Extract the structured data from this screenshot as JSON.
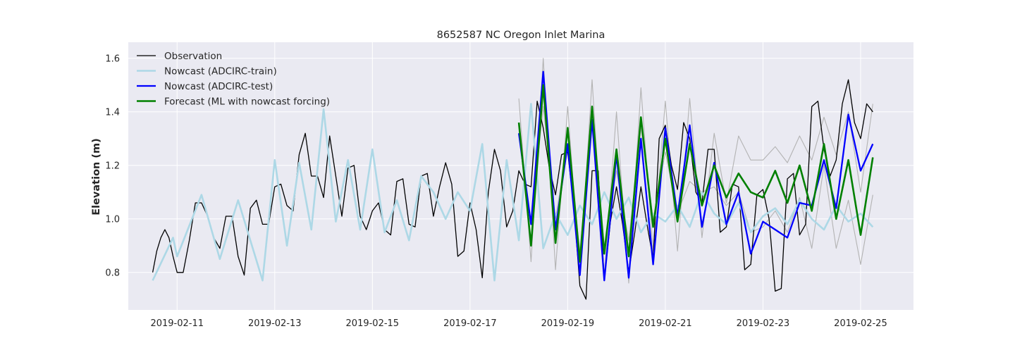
{
  "chart_data": {
    "type": "line",
    "title": "8652587 NC Oregon Inlet Marina",
    "xlabel": "",
    "ylabel": "Elevation (m)",
    "xlim": [
      "2019-02-10T00:00",
      "2019-02-26T02:00"
    ],
    "ylim": [
      0.66,
      1.66
    ],
    "xticks": [
      "2019-02-11",
      "2019-02-13",
      "2019-02-15",
      "2019-02-17",
      "2019-02-19",
      "2019-02-21",
      "2019-02-23",
      "2019-02-25"
    ],
    "yticks": [
      0.8,
      1.0,
      1.2,
      1.4,
      1.6
    ],
    "grid": true,
    "legend_position": "top-left",
    "background": "#eaeaf2",
    "series": [
      {
        "name": "Observation",
        "color": "#000000",
        "x": [
          "2019-02-10T12:00",
          "2019-02-10T14:00",
          "2019-02-10T16:00",
          "2019-02-10T18:00",
          "2019-02-10T20:00",
          "2019-02-10T22:00",
          "2019-02-11T00:00",
          "2019-02-11T03:00",
          "2019-02-11T06:00",
          "2019-02-11T09:00",
          "2019-02-11T12:00",
          "2019-02-11T15:00",
          "2019-02-11T18:00",
          "2019-02-11T21:00",
          "2019-02-12T00:00",
          "2019-02-12T03:00",
          "2019-02-12T06:00",
          "2019-02-12T09:00",
          "2019-02-12T12:00",
          "2019-02-12T15:00",
          "2019-02-12T18:00",
          "2019-02-12T21:00",
          "2019-02-13T00:00",
          "2019-02-13T03:00",
          "2019-02-13T06:00",
          "2019-02-13T09:00",
          "2019-02-13T12:00",
          "2019-02-13T15:00",
          "2019-02-13T18:00",
          "2019-02-13T21:00",
          "2019-02-14T00:00",
          "2019-02-14T03:00",
          "2019-02-14T06:00",
          "2019-02-14T09:00",
          "2019-02-14T12:00",
          "2019-02-14T15:00",
          "2019-02-14T18:00",
          "2019-02-14T21:00",
          "2019-02-15T00:00",
          "2019-02-15T03:00",
          "2019-02-15T06:00",
          "2019-02-15T09:00",
          "2019-02-15T12:00",
          "2019-02-15T15:00",
          "2019-02-15T18:00",
          "2019-02-15T21:00",
          "2019-02-16T00:00",
          "2019-02-16T03:00",
          "2019-02-16T06:00",
          "2019-02-16T09:00",
          "2019-02-16T12:00",
          "2019-02-16T15:00",
          "2019-02-16T18:00",
          "2019-02-16T21:00",
          "2019-02-17T00:00",
          "2019-02-17T03:00",
          "2019-02-17T06:00",
          "2019-02-17T09:00",
          "2019-02-17T12:00",
          "2019-02-17T15:00",
          "2019-02-17T18:00",
          "2019-02-17T21:00",
          "2019-02-18T00:00",
          "2019-02-18T03:00",
          "2019-02-18T06:00",
          "2019-02-18T09:00",
          "2019-02-18T12:00",
          "2019-02-18T15:00",
          "2019-02-18T18:00",
          "2019-02-18T21:00",
          "2019-02-19T00:00",
          "2019-02-19T03:00",
          "2019-02-19T06:00",
          "2019-02-19T09:00",
          "2019-02-19T12:00",
          "2019-02-19T15:00",
          "2019-02-19T18:00",
          "2019-02-19T21:00",
          "2019-02-20T00:00",
          "2019-02-20T03:00",
          "2019-02-20T06:00",
          "2019-02-20T09:00",
          "2019-02-20T12:00",
          "2019-02-20T15:00",
          "2019-02-20T18:00",
          "2019-02-20T21:00",
          "2019-02-21T00:00",
          "2019-02-21T03:00",
          "2019-02-21T06:00",
          "2019-02-21T09:00",
          "2019-02-21T12:00",
          "2019-02-21T15:00",
          "2019-02-21T18:00",
          "2019-02-21T21:00",
          "2019-02-22T00:00",
          "2019-02-22T03:00",
          "2019-02-22T06:00",
          "2019-02-22T09:00",
          "2019-02-22T12:00",
          "2019-02-22T15:00",
          "2019-02-22T18:00",
          "2019-02-22T21:00",
          "2019-02-23T00:00",
          "2019-02-23T03:00",
          "2019-02-23T06:00",
          "2019-02-23T09:00",
          "2019-02-23T12:00",
          "2019-02-23T15:00",
          "2019-02-23T18:00",
          "2019-02-23T21:00",
          "2019-02-24T00:00",
          "2019-02-24T03:00",
          "2019-02-24T06:00",
          "2019-02-24T09:00",
          "2019-02-24T12:00",
          "2019-02-24T15:00",
          "2019-02-24T18:00",
          "2019-02-24T21:00",
          "2019-02-25T00:00",
          "2019-02-25T03:00",
          "2019-02-25T06:00"
        ],
        "y": [
          0.8,
          0.88,
          0.93,
          0.96,
          0.93,
          0.86,
          0.8,
          0.8,
          0.92,
          1.06,
          1.06,
          1.01,
          0.93,
          0.89,
          1.01,
          1.01,
          0.86,
          0.79,
          1.04,
          1.07,
          0.98,
          0.98,
          1.12,
          1.13,
          1.05,
          1.03,
          1.24,
          1.32,
          1.16,
          1.16,
          1.08,
          1.31,
          1.16,
          1.01,
          1.19,
          1.2,
          1.01,
          0.96,
          1.03,
          1.06,
          0.96,
          0.94,
          1.14,
          1.15,
          0.98,
          0.97,
          1.16,
          1.17,
          1.01,
          1.12,
          1.21,
          1.13,
          0.86,
          0.88,
          1.06,
          0.96,
          0.78,
          1.1,
          1.26,
          1.18,
          0.97,
          1.03,
          1.18,
          1.13,
          1.12,
          1.44,
          1.34,
          1.19,
          1.09,
          1.24,
          1.25,
          1.05,
          0.75,
          0.7,
          1.18,
          1.18,
          0.77,
          0.99,
          1.12,
          0.98,
          0.8,
          0.95,
          1.12,
          0.98,
          0.85,
          1.3,
          1.35,
          1.2,
          1.11,
          1.36,
          1.3,
          1.1,
          1.06,
          1.26,
          1.26,
          0.95,
          0.97,
          1.13,
          1.12,
          0.81,
          0.83,
          1.09,
          1.11,
          1.0,
          0.73,
          0.74,
          1.15,
          1.17,
          0.94,
          0.98,
          1.42,
          1.44,
          1.26,
          1.16,
          1.22,
          1.43,
          1.52,
          1.36,
          1.3,
          1.43,
          1.4
        ]
      },
      {
        "name": "Nowcast (ADCIRC-train)",
        "color": "#add8e6",
        "x": [
          "2019-02-10T12:00",
          "2019-02-10T22:00",
          "2019-02-11T00:00",
          "2019-02-11T12:00",
          "2019-02-11T21:00",
          "2019-02-12T06:00",
          "2019-02-12T18:00",
          "2019-02-13T00:00",
          "2019-02-13T06:00",
          "2019-02-13T12:00",
          "2019-02-13T18:00",
          "2019-02-14T00:00",
          "2019-02-14T06:00",
          "2019-02-14T12:00",
          "2019-02-14T18:00",
          "2019-02-15T00:00",
          "2019-02-15T06:00",
          "2019-02-15T12:00",
          "2019-02-15T18:00",
          "2019-02-16T00:00",
          "2019-02-16T06:00",
          "2019-02-16T12:00",
          "2019-02-16T18:00",
          "2019-02-17T00:00",
          "2019-02-17T06:00",
          "2019-02-17T12:00",
          "2019-02-17T18:00",
          "2019-02-18T00:00",
          "2019-02-18T06:00",
          "2019-02-18T12:00",
          "2019-02-18T18:00",
          "2019-02-19T00:00",
          "2019-02-19T06:00",
          "2019-02-19T12:00",
          "2019-02-19T18:00",
          "2019-02-20T00:00",
          "2019-02-20T06:00",
          "2019-02-20T12:00",
          "2019-02-20T18:00",
          "2019-02-21T00:00",
          "2019-02-21T06:00",
          "2019-02-21T12:00",
          "2019-02-21T18:00",
          "2019-02-22T00:00",
          "2019-02-22T06:00",
          "2019-02-22T12:00",
          "2019-02-22T18:00",
          "2019-02-23T00:00",
          "2019-02-23T06:00",
          "2019-02-23T12:00",
          "2019-02-23T18:00",
          "2019-02-24T00:00",
          "2019-02-24T06:00",
          "2019-02-24T12:00",
          "2019-02-24T18:00",
          "2019-02-25T00:00",
          "2019-02-25T06:00"
        ],
        "y": [
          0.77,
          0.93,
          0.86,
          1.09,
          0.85,
          1.07,
          0.77,
          1.22,
          0.9,
          1.21,
          0.96,
          1.41,
          0.99,
          1.22,
          0.96,
          1.26,
          0.95,
          1.07,
          0.92,
          1.16,
          1.1,
          1.0,
          1.1,
          1.03,
          1.28,
          0.77,
          1.22,
          0.92,
          1.43,
          0.89,
          1.02,
          0.94,
          1.05,
          0.98,
          1.1,
          1.0,
          1.08,
          0.95,
          1.02,
          0.99,
          1.05,
          0.97,
          1.1,
          1.02,
          0.98,
          1.06,
          0.95,
          1.01,
          1.04,
          0.98,
          1.07,
          1.0,
          0.96,
          1.05,
          0.99,
          1.02,
          0.97
        ]
      },
      {
        "name": "Nowcast (ADCIRC-test)",
        "color": "#0000ff",
        "x": [
          "2019-02-18T00:00",
          "2019-02-18T06:00",
          "2019-02-18T12:00",
          "2019-02-18T18:00",
          "2019-02-19T00:00",
          "2019-02-19T06:00",
          "2019-02-19T12:00",
          "2019-02-19T18:00",
          "2019-02-20T00:00",
          "2019-02-20T06:00",
          "2019-02-20T12:00",
          "2019-02-20T18:00",
          "2019-02-21T00:00",
          "2019-02-21T06:00",
          "2019-02-21T12:00",
          "2019-02-21T18:00",
          "2019-02-22T00:00",
          "2019-02-22T06:00",
          "2019-02-22T12:00",
          "2019-02-22T18:00",
          "2019-02-23T00:00",
          "2019-02-23T06:00",
          "2019-02-23T12:00",
          "2019-02-23T18:00",
          "2019-02-24T00:00",
          "2019-02-24T06:00",
          "2019-02-24T12:00",
          "2019-02-24T18:00",
          "2019-02-25T00:00",
          "2019-02-25T06:00"
        ],
        "y": [
          1.32,
          0.98,
          1.55,
          0.96,
          1.28,
          0.79,
          1.37,
          0.77,
          1.24,
          0.78,
          1.3,
          0.83,
          1.34,
          1.01,
          1.35,
          0.97,
          1.21,
          0.98,
          1.1,
          0.87,
          0.99,
          0.96,
          0.93,
          1.06,
          1.05,
          1.22,
          1.04,
          1.39,
          1.18,
          1.28
        ]
      },
      {
        "name": "Forecast (ML with nowcast forcing)",
        "color": "#008000",
        "x": [
          "2019-02-18T00:00",
          "2019-02-18T06:00",
          "2019-02-18T12:00",
          "2019-02-18T18:00",
          "2019-02-19T00:00",
          "2019-02-19T06:00",
          "2019-02-19T12:00",
          "2019-02-19T18:00",
          "2019-02-20T00:00",
          "2019-02-20T06:00",
          "2019-02-20T12:00",
          "2019-02-20T18:00",
          "2019-02-21T00:00",
          "2019-02-21T06:00",
          "2019-02-21T12:00",
          "2019-02-21T18:00",
          "2019-02-22T00:00",
          "2019-02-22T06:00",
          "2019-02-22T12:00",
          "2019-02-22T18:00",
          "2019-02-23T00:00",
          "2019-02-23T06:00",
          "2019-02-23T12:00",
          "2019-02-23T18:00",
          "2019-02-24T00:00",
          "2019-02-24T06:00",
          "2019-02-24T12:00",
          "2019-02-24T18:00",
          "2019-02-25T00:00",
          "2019-02-25T06:00"
        ],
        "y": [
          1.36,
          0.9,
          1.5,
          0.91,
          1.34,
          0.84,
          1.42,
          0.87,
          1.26,
          0.86,
          1.38,
          0.97,
          1.3,
          0.99,
          1.28,
          1.05,
          1.2,
          1.08,
          1.17,
          1.1,
          1.08,
          1.18,
          1.06,
          1.2,
          1.03,
          1.28,
          1.0,
          1.22,
          0.94,
          1.23
        ]
      },
      {
        "name": "",
        "color": "#b3b3b3",
        "x": [
          "2019-02-18T00:00",
          "2019-02-18T06:00",
          "2019-02-18T12:00",
          "2019-02-18T18:00",
          "2019-02-19T00:00",
          "2019-02-19T06:00",
          "2019-02-19T12:00",
          "2019-02-19T18:00",
          "2019-02-20T00:00",
          "2019-02-20T06:00",
          "2019-02-20T12:00",
          "2019-02-20T18:00",
          "2019-02-21T00:00",
          "2019-02-21T06:00",
          "2019-02-21T12:00",
          "2019-02-21T18:00",
          "2019-02-22T00:00",
          "2019-02-22T06:00",
          "2019-02-22T12:00",
          "2019-02-22T18:00",
          "2019-02-23T00:00",
          "2019-02-23T06:00",
          "2019-02-23T12:00",
          "2019-02-23T18:00",
          "2019-02-24T00:00",
          "2019-02-24T06:00",
          "2019-02-24T12:00",
          "2019-02-24T18:00",
          "2019-02-25T00:00",
          "2019-02-25T06:00"
        ],
        "y": [
          1.45,
          0.84,
          1.6,
          0.81,
          1.42,
          0.79,
          1.52,
          0.79,
          1.4,
          0.76,
          1.49,
          0.88,
          1.44,
          0.88,
          1.45,
          0.93,
          1.32,
          1.06,
          1.31,
          1.22,
          1.22,
          1.27,
          1.21,
          1.31,
          1.22,
          1.38,
          1.24,
          1.4,
          1.1,
          1.43
        ]
      },
      {
        "name": "",
        "color": "#b3b3b3",
        "x": [
          "2019-02-18T00:00",
          "2019-02-18T06:00",
          "2019-02-18T12:00",
          "2019-02-18T18:00",
          "2019-02-19T00:00",
          "2019-02-19T06:00",
          "2019-02-19T12:00",
          "2019-02-19T18:00",
          "2019-02-20T00:00",
          "2019-02-20T06:00",
          "2019-02-20T12:00",
          "2019-02-20T18:00",
          "2019-02-21T00:00",
          "2019-02-21T06:00",
          "2019-02-21T12:00",
          "2019-02-21T18:00",
          "2019-02-22T00:00",
          "2019-02-22T06:00",
          "2019-02-22T12:00",
          "2019-02-22T18:00",
          "2019-02-23T00:00",
          "2019-02-23T06:00",
          "2019-02-23T12:00",
          "2019-02-23T18:00",
          "2019-02-24T00:00",
          "2019-02-24T06:00",
          "2019-02-24T12:00",
          "2019-02-24T18:00",
          "2019-02-25T00:00",
          "2019-02-25T06:00"
        ],
        "y": [
          1.32,
          0.98,
          1.42,
          1.0,
          1.28,
          0.88,
          1.36,
          0.9,
          1.18,
          0.92,
          1.34,
          1.0,
          1.25,
          1.02,
          1.14,
          1.1,
          1.12,
          1.05,
          1.1,
          0.95,
          0.97,
          1.03,
          0.95,
          1.08,
          0.89,
          1.2,
          0.89,
          1.07,
          0.83,
          1.09
        ]
      }
    ]
  }
}
